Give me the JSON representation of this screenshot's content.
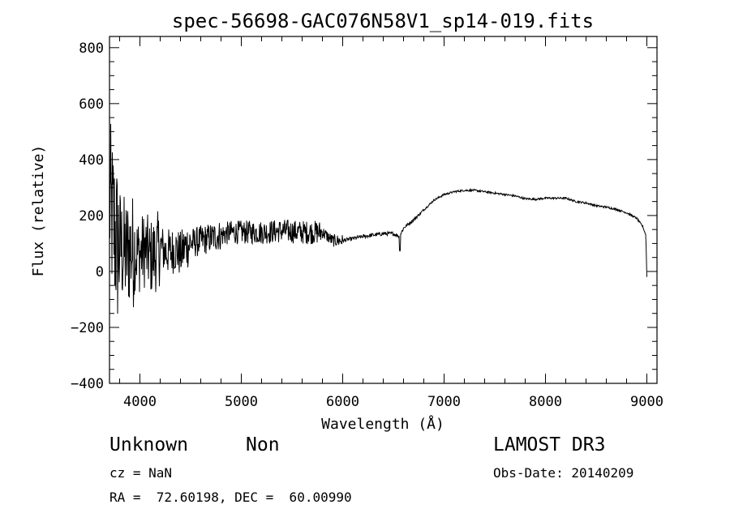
{
  "chart_data": {
    "type": "line",
    "title": "spec-56698-GAC076N58V1_sp14-019.fits",
    "xlabel": "Wavelength (Å)",
    "ylabel": "Flux (relative)",
    "xlim": [
      3700,
      9100
    ],
    "ylim": [
      -400,
      840
    ],
    "xticks": [
      4000,
      5000,
      6000,
      7000,
      8000,
      9000
    ],
    "yticks": [
      -400,
      -200,
      0,
      200,
      400,
      600,
      800
    ],
    "grid": false,
    "series": [
      {
        "x": [
          3700,
          3720,
          3740,
          3760,
          3780,
          3800,
          3820,
          3840,
          3860,
          3880,
          3900,
          3950,
          4000,
          4050,
          4100,
          4150,
          4200,
          4250,
          4300,
          4350,
          4400,
          4450,
          4500,
          4600,
          4700,
          4800,
          4900,
          5000,
          5200,
          5400,
          5600,
          5800,
          5900,
          6000,
          6200,
          6400,
          6500,
          6560,
          6600,
          6700,
          6800,
          6900,
          7000,
          7100,
          7200,
          7300,
          7400,
          7500,
          7600,
          7700,
          7800,
          7900,
          8000,
          8100,
          8200,
          8300,
          8400,
          8500,
          8600,
          8700,
          8800,
          8900,
          8960,
          9000
        ],
        "y": [
          250,
          200,
          170,
          120,
          90,
          100,
          80,
          70,
          60,
          70,
          80,
          70,
          60,
          80,
          50,
          60,
          90,
          70,
          70,
          80,
          60,
          90,
          100,
          110,
          120,
          130,
          140,
          140,
          140,
          145,
          140,
          140,
          110,
          110,
          125,
          135,
          135,
          125,
          155,
          185,
          220,
          255,
          275,
          285,
          290,
          290,
          285,
          280,
          275,
          270,
          260,
          258,
          262,
          262,
          262,
          250,
          245,
          235,
          230,
          222,
          210,
          190,
          160,
          120
        ]
      }
    ]
  },
  "info": {
    "object_class": "Unknown",
    "object_subclass": "Non",
    "survey": "LAMOST DR3",
    "cz": "cz = NaN",
    "obs_date": "Obs-Date: 20140209",
    "coords": "RA =  72.60198, DEC =  60.00990"
  }
}
